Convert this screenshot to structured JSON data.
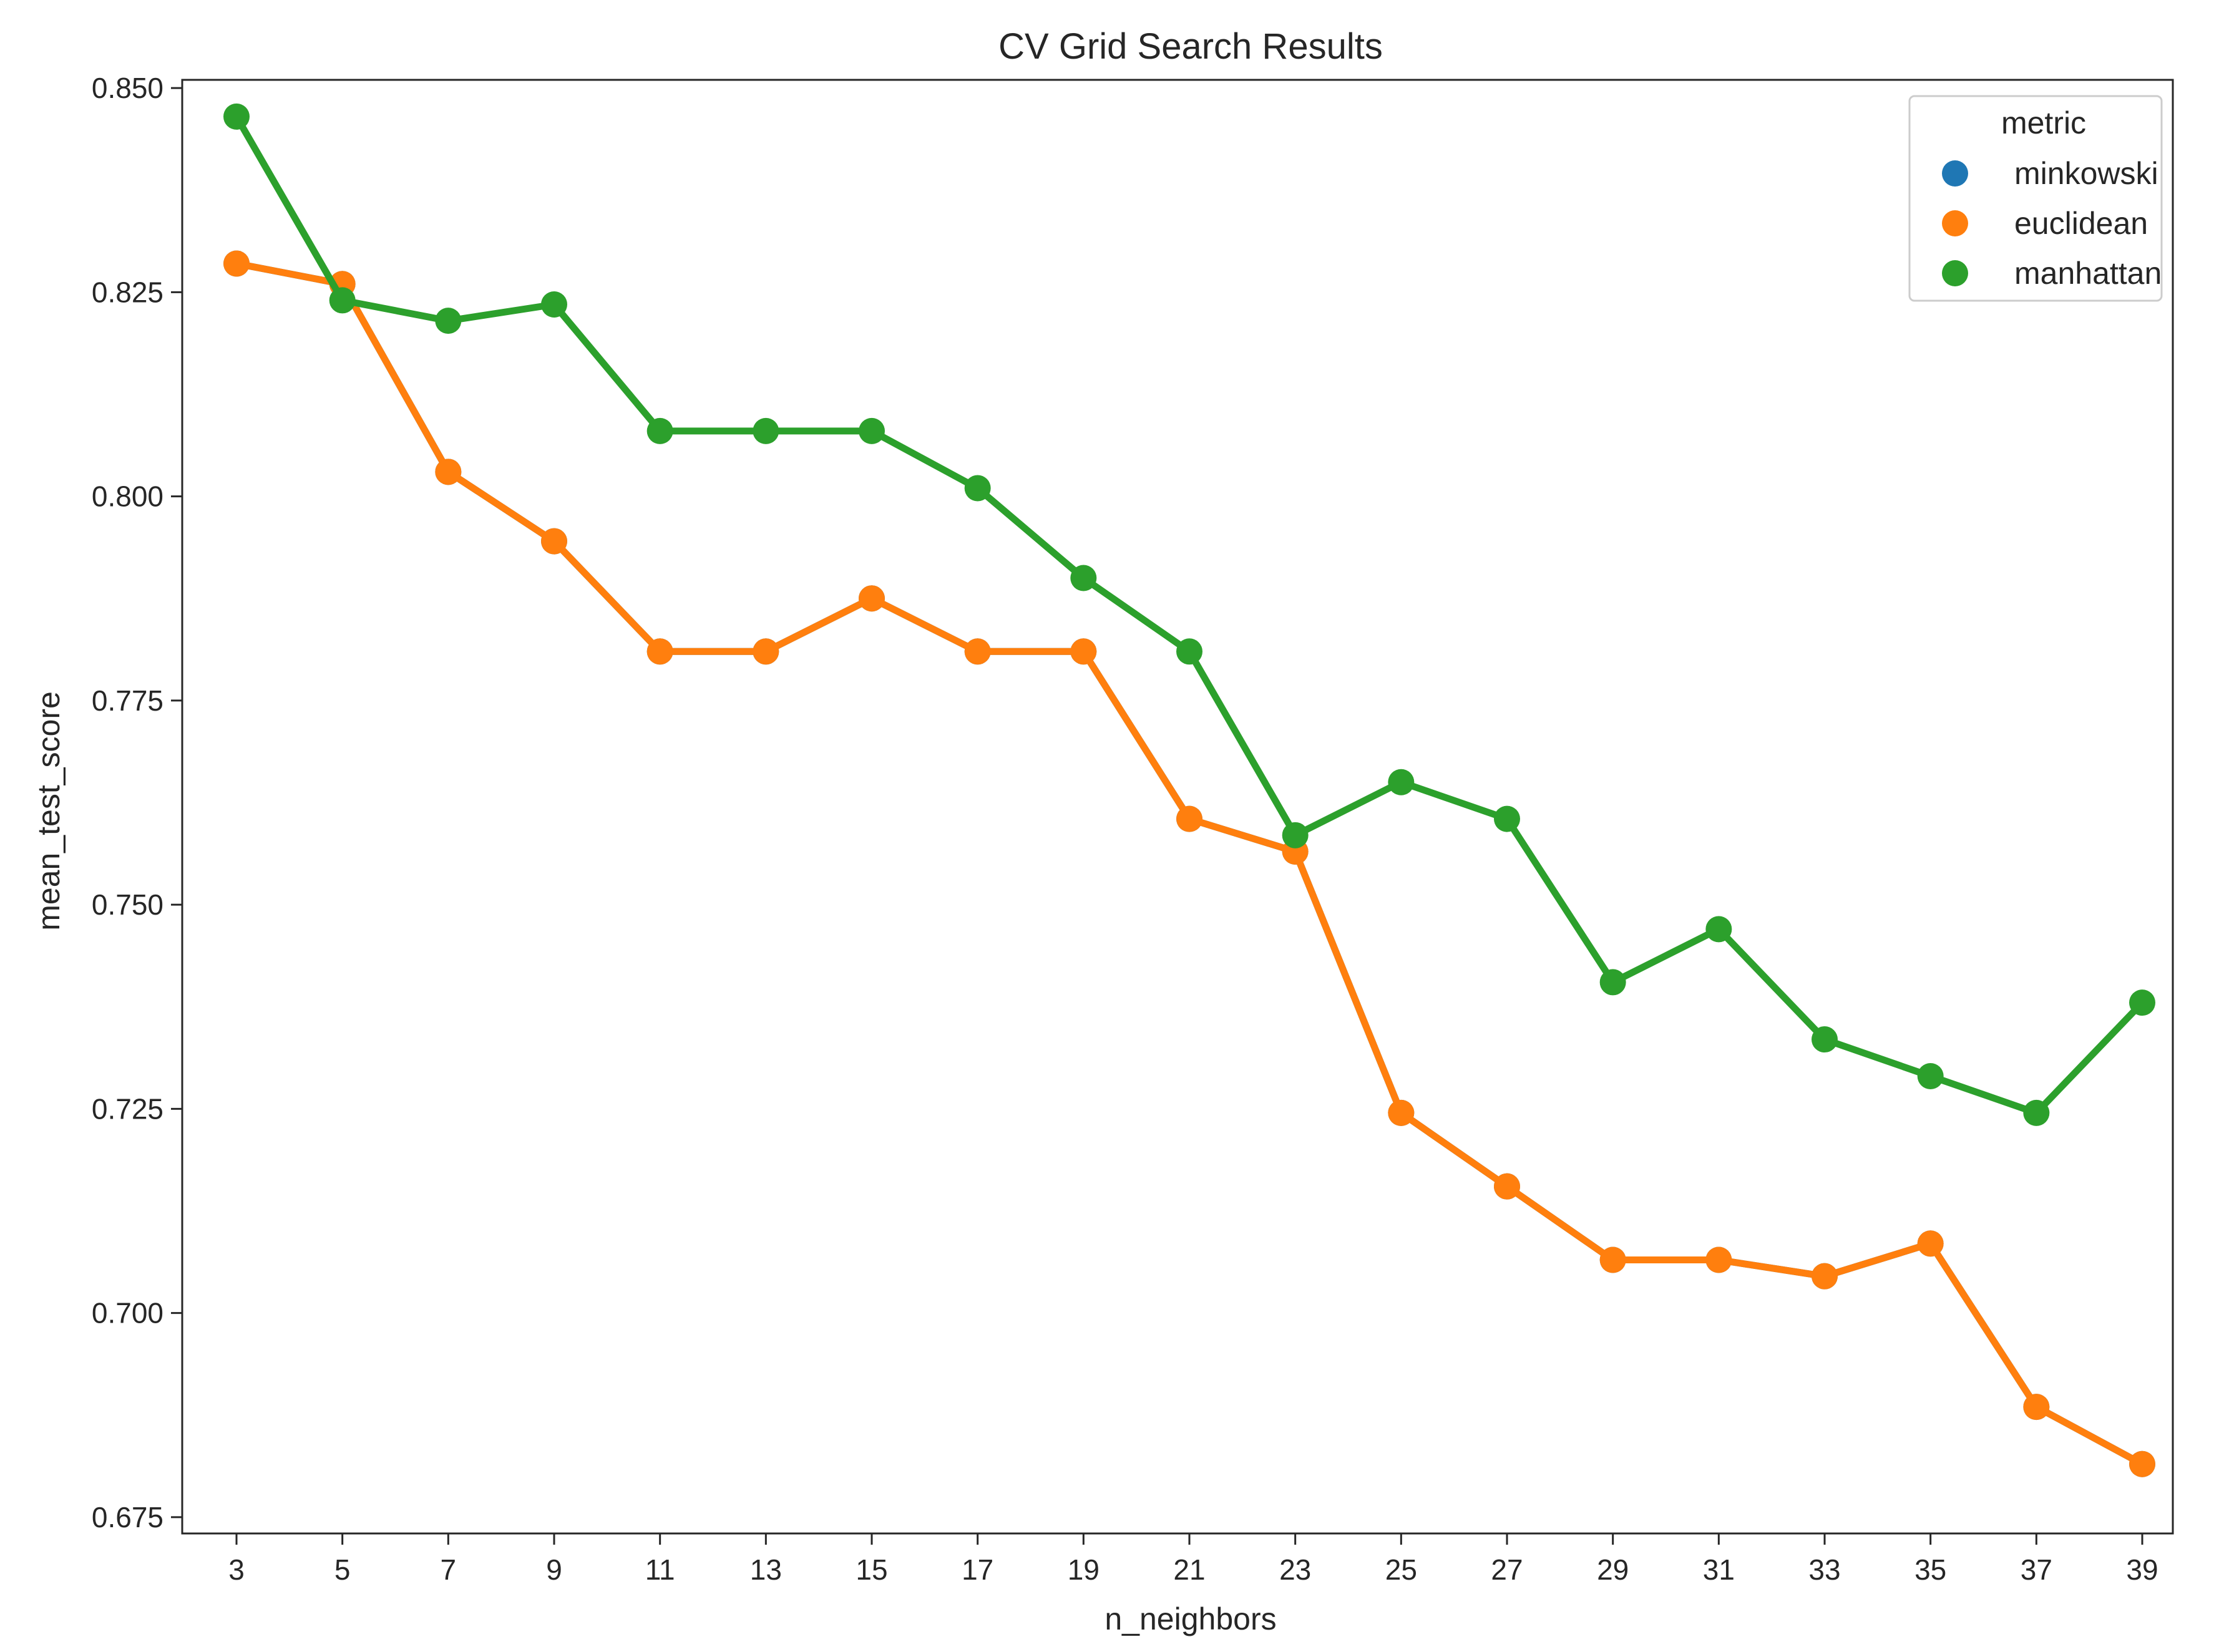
{
  "chart_data": {
    "type": "line",
    "title": "CV Grid Search Results",
    "xlabel": "n_neighbors",
    "ylabel": "mean_test_score",
    "categories": [
      "3",
      "5",
      "7",
      "9",
      "11",
      "13",
      "15",
      "17",
      "19",
      "21",
      "23",
      "25",
      "27",
      "29",
      "31",
      "33",
      "35",
      "37",
      "39"
    ],
    "ylim": [
      0.673,
      0.851
    ],
    "yticks": [
      "0.675",
      "0.700",
      "0.725",
      "0.750",
      "0.775",
      "0.800",
      "0.825",
      "0.850"
    ],
    "grid": false,
    "legend": {
      "title": "metric",
      "placement": "top-right"
    },
    "series": [
      {
        "name": "minkowski",
        "color": "#1f77b4",
        "values": [
          0.8285,
          0.826,
          0.803,
          0.7945,
          0.781,
          0.781,
          0.7875,
          0.781,
          0.781,
          0.7605,
          0.7565,
          0.7245,
          0.7155,
          0.7065,
          0.7065,
          0.7045,
          0.7085,
          0.6885,
          0.6815
        ]
      },
      {
        "name": "euclidean",
        "color": "#ff7f0e",
        "values": [
          0.8285,
          0.826,
          0.803,
          0.7945,
          0.781,
          0.781,
          0.7875,
          0.781,
          0.781,
          0.7605,
          0.7565,
          0.7245,
          0.7155,
          0.7065,
          0.7065,
          0.7045,
          0.7085,
          0.6885,
          0.6815
        ]
      },
      {
        "name": "manhattan",
        "color": "#2ca02c",
        "values": [
          0.8465,
          0.824,
          0.8215,
          0.8235,
          0.808,
          0.808,
          0.808,
          0.801,
          0.79,
          0.781,
          0.7585,
          0.765,
          0.7605,
          0.7405,
          0.747,
          0.7335,
          0.729,
          0.7245,
          0.738
        ]
      }
    ]
  }
}
